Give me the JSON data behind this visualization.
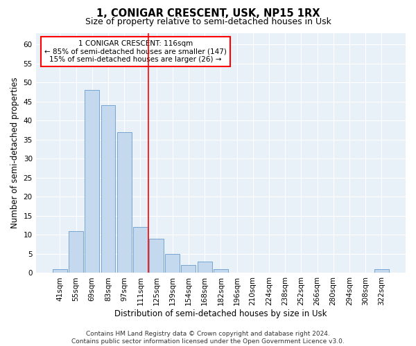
{
  "title": "1, CONIGAR CRESCENT, USK, NP15 1RX",
  "subtitle": "Size of property relative to semi-detached houses in Usk",
  "xlabel": "Distribution of semi-detached houses by size in Usk",
  "ylabel": "Number of semi-detached properties",
  "bar_color": "#c5d9ee",
  "bar_edge_color": "#6699cc",
  "categories": [
    "41sqm",
    "55sqm",
    "69sqm",
    "83sqm",
    "97sqm",
    "111sqm",
    "125sqm",
    "139sqm",
    "154sqm",
    "168sqm",
    "182sqm",
    "196sqm",
    "210sqm",
    "224sqm",
    "238sqm",
    "252sqm",
    "266sqm",
    "280sqm",
    "294sqm",
    "308sqm",
    "322sqm"
  ],
  "values": [
    1,
    11,
    48,
    44,
    37,
    12,
    9,
    5,
    2,
    3,
    1,
    0,
    0,
    0,
    0,
    0,
    0,
    0,
    0,
    0,
    1
  ],
  "ylim": [
    0,
    63
  ],
  "yticks": [
    0,
    5,
    10,
    15,
    20,
    25,
    30,
    35,
    40,
    45,
    50,
    55,
    60
  ],
  "vline_x": 5.5,
  "annotation_text_line1": "1 CONIGAR CRESCENT: 116sqm",
  "annotation_text_line2": "← 85% of semi-detached houses are smaller (147)",
  "annotation_text_line3": "15% of semi-detached houses are larger (26) →",
  "footer_line1": "Contains HM Land Registry data © Crown copyright and database right 2024.",
  "footer_line2": "Contains public sector information licensed under the Open Government Licence v3.0.",
  "background_color": "#e8f0f8",
  "grid_color": "#ffffff",
  "title_fontsize": 10.5,
  "subtitle_fontsize": 9,
  "axis_label_fontsize": 8.5,
  "tick_fontsize": 7.5,
  "footer_fontsize": 6.5,
  "annotation_fontsize": 7.5
}
